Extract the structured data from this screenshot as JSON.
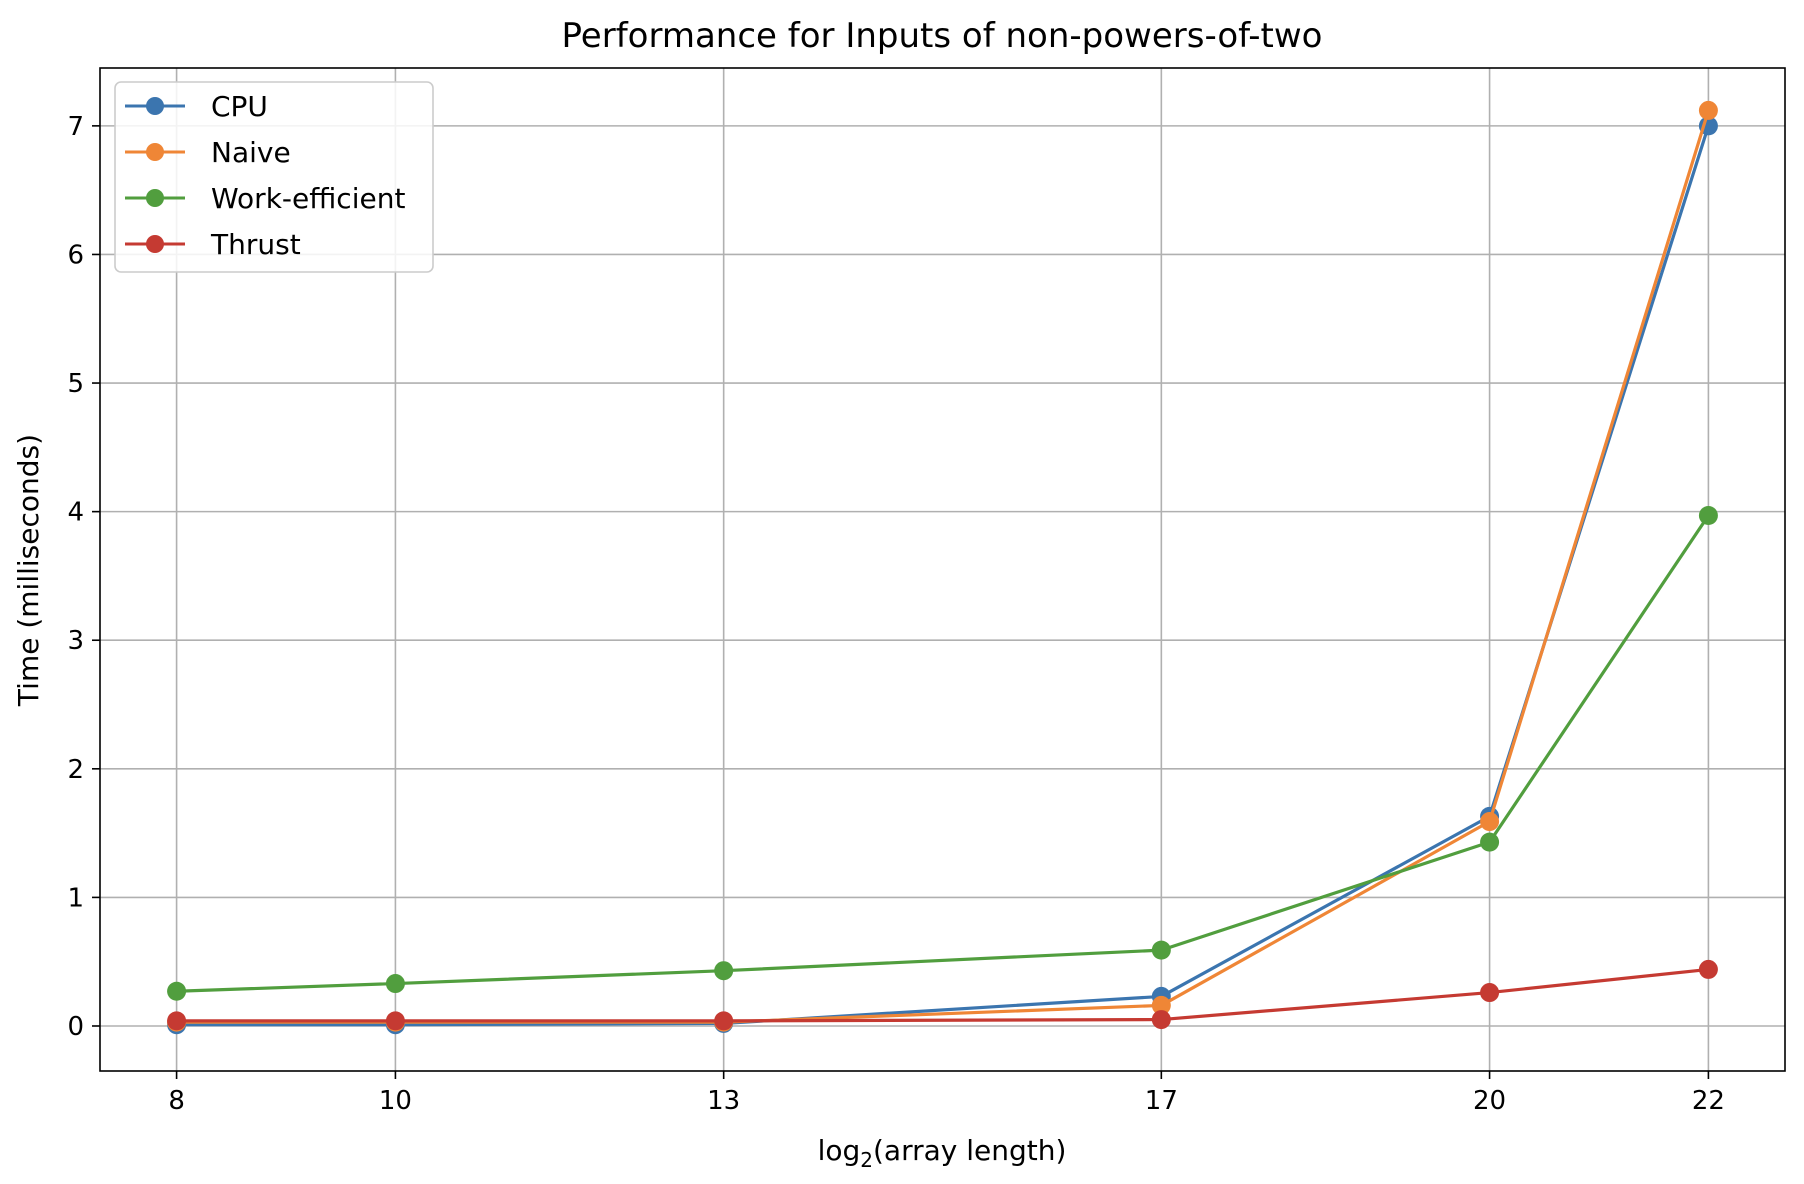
{
  "chart_data": {
    "type": "line",
    "title": "Performance for Inputs of non-powers-of-two",
    "xlabel_main": "log",
    "xlabel_sub": "2",
    "xlabel_rest": "(array length)",
    "ylabel": "Time (milliseconds)",
    "x": [
      8,
      10,
      13,
      17,
      20,
      22
    ],
    "x_tick_labels": [
      "8",
      "10",
      "13",
      "17",
      "20",
      "22"
    ],
    "xlim": [
      7.3,
      22.7
    ],
    "y_ticks": [
      0,
      1,
      2,
      3,
      4,
      5,
      6,
      7
    ],
    "y_tick_labels": [
      "0",
      "1",
      "2",
      "3",
      "4",
      "5",
      "6",
      "7"
    ],
    "ylim": [
      -0.35,
      7.45
    ],
    "grid": true,
    "legend_position": "top-left",
    "series": [
      {
        "name": "CPU",
        "color": "#3b75af",
        "values": [
          0.01,
          0.01,
          0.02,
          0.23,
          1.63,
          7.0
        ]
      },
      {
        "name": "Naive",
        "color": "#ef8636",
        "values": [
          0.03,
          0.03,
          0.03,
          0.16,
          1.59,
          7.12
        ]
      },
      {
        "name": "Work-efficient",
        "color": "#519e3e",
        "values": [
          0.27,
          0.33,
          0.43,
          0.59,
          1.43,
          3.97
        ]
      },
      {
        "name": "Thrust",
        "color": "#c53a32",
        "values": [
          0.04,
          0.04,
          0.04,
          0.05,
          0.26,
          0.44
        ]
      }
    ]
  }
}
